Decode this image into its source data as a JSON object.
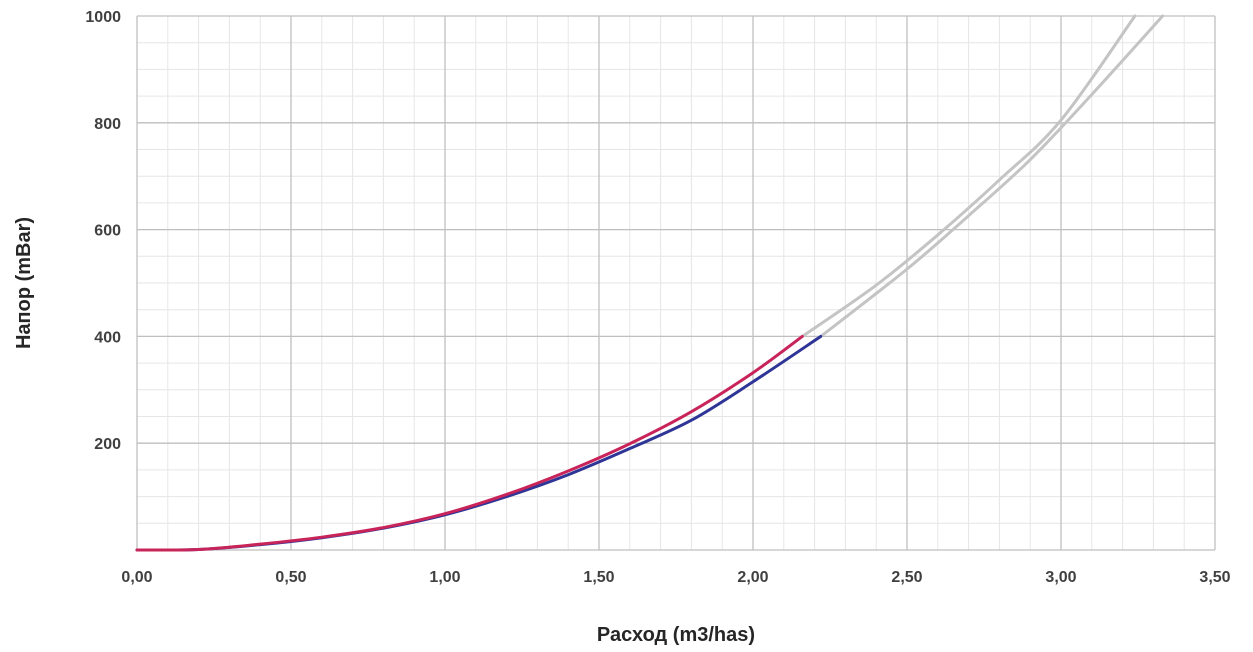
{
  "chart_data": {
    "type": "line",
    "title": "",
    "xlabel": "Расход (m3/has)",
    "ylabel": "Напор (mBar)",
    "xlim": [
      0,
      3.5
    ],
    "ylim": [
      0,
      1000
    ],
    "x_major_ticks": [
      0,
      0.5,
      1.0,
      1.5,
      2.0,
      2.5,
      3.0,
      3.5
    ],
    "x_tick_labels": [
      "0,00",
      "0,50",
      "1,00",
      "1,50",
      "2,00",
      "2,50",
      "3,00",
      "3,50"
    ],
    "x_minor_step": 0.1,
    "y_major_ticks": [
      200,
      400,
      600,
      800,
      1000
    ],
    "y_tick_labels": [
      "200",
      "400",
      "600",
      "800",
      "1000"
    ],
    "y_minor_step": 50,
    "grid": true,
    "legend": "none",
    "colors": {
      "major_grid": "#bfbfbf",
      "minor_grid": "#e6e6e6",
      "series_red": "#c8245a",
      "series_blue": "#2e3596",
      "series_gray": "#c4c4c4"
    },
    "series": [
      {
        "color": "#c4c4c4",
        "x": [
          2.16,
          2.4,
          2.6,
          2.8,
          3.0,
          3.24
        ],
        "y": [
          400,
          496,
          590,
          693,
          805,
          1000
        ]
      },
      {
        "color": "#c4c4c4",
        "x": [
          2.22,
          2.5,
          2.7,
          2.9,
          3.1,
          3.33
        ],
        "y": [
          400,
          526,
          626,
          731,
          853,
          1000
        ]
      },
      {
        "color": "#2e3596",
        "x": [
          0.0,
          0.2,
          0.4,
          0.6,
          0.8,
          1.0,
          1.2,
          1.4,
          1.6,
          1.8,
          2.0,
          2.22
        ],
        "y": [
          0,
          1,
          10,
          23,
          41,
          66,
          100,
          141,
          190,
          243,
          315,
          400
        ]
      },
      {
        "color": "#c8245a",
        "x": [
          0.0,
          0.2,
          0.4,
          0.6,
          0.8,
          1.0,
          1.2,
          1.4,
          1.6,
          1.8,
          2.0,
          2.16
        ],
        "y": [
          0,
          1,
          11,
          24,
          42,
          68,
          104,
          148,
          199,
          259,
          332,
          400
        ]
      }
    ]
  }
}
